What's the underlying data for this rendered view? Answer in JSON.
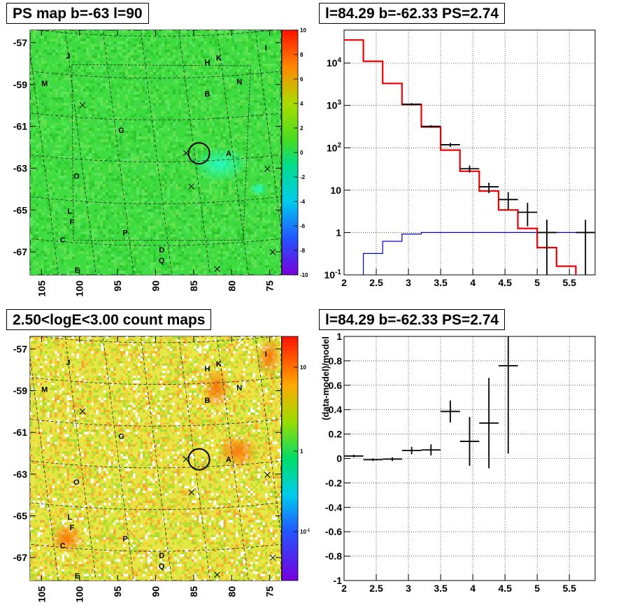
{
  "panels": {
    "top_left_title": "PS map b=-63 l=90",
    "top_right_title": "l=84.29 b=-62.33 PS=2.74",
    "bottom_left_title": "2.50<logE<3.00 count maps",
    "bottom_right_title": "l=84.29 b=-62.33 PS=2.74"
  },
  "colors": {
    "ps_map_background": "#3fdc3f",
    "count_map_background": "#e6e84a",
    "model_line": "#ee0000",
    "background_line": "#0000cc",
    "data": "#000000"
  },
  "chart_data": [
    {
      "type": "heatmap",
      "title": "PS map b=-63 l=90",
      "xlabel": "",
      "ylabel": "",
      "xlim": [
        106.5,
        73.5
      ],
      "ylim": [
        -68.1,
        -56.4
      ],
      "x_ticks": [
        "105",
        "100",
        "95",
        "90",
        "85",
        "80",
        "75"
      ],
      "y_ticks": [
        "-57",
        "-59",
        "-61",
        "-63",
        "-65",
        "-67"
      ],
      "colorbar_ticks": [
        "10",
        "8",
        "6",
        "4",
        "2",
        "0",
        "-2",
        "-4",
        "-6",
        "-8",
        "-10"
      ],
      "colorbar_range": [
        -10,
        10
      ],
      "sources": [
        {
          "label": "J",
          "l": 101.5,
          "b": -57.8
        },
        {
          "label": "M",
          "l": 104.6,
          "b": -59.2
        },
        {
          "label": "H",
          "l": 83.2,
          "b": -58.0
        },
        {
          "label": "K",
          "l": 81.7,
          "b": -57.8
        },
        {
          "label": "I",
          "l": 75.5,
          "b": -57.5
        },
        {
          "label": "B",
          "l": 83.2,
          "b": -59.5
        },
        {
          "label": "N",
          "l": 79.0,
          "b": -59.0
        },
        {
          "label": "G",
          "l": 94.5,
          "b": -61.2
        },
        {
          "label": "A",
          "l": 80.4,
          "b": -62.4
        },
        {
          "label": "O",
          "l": 100.4,
          "b": -63.5
        },
        {
          "label": "L",
          "l": 101.3,
          "b": -65.2
        },
        {
          "label": "F",
          "l": 101.0,
          "b": -65.7
        },
        {
          "label": "C",
          "l": 102.2,
          "b": -66.6
        },
        {
          "label": "P",
          "l": 94.0,
          "b": -66.1
        },
        {
          "label": "D",
          "l": 89.2,
          "b": -66.9
        },
        {
          "label": "Q",
          "l": 89.2,
          "b": -67.4
        },
        {
          "label": "E",
          "l": 100.3,
          "b": -68.0
        }
      ],
      "crosses": [
        {
          "l": 99.6,
          "b": -60.1
        },
        {
          "l": 86.0,
          "b": -62.3
        },
        {
          "l": 75.3,
          "b": -63.3
        },
        {
          "l": 85.3,
          "b": -63.9
        },
        {
          "l": 81.9,
          "b": -67.9
        },
        {
          "l": 74.6,
          "b": -67.3
        }
      ],
      "circle": {
        "l": 84.29,
        "b": -62.33
      }
    },
    {
      "type": "line",
      "title": "l=84.29 b=-62.33 PS=2.74",
      "xlabel": "",
      "ylabel": "",
      "xlim": [
        2.0,
        5.9
      ],
      "ylim": [
        0.1,
        60000
      ],
      "yscale": "log",
      "x_ticks": [
        "2",
        "2.5",
        "3",
        "3.5",
        "4",
        "4.5",
        "5",
        "5.5"
      ],
      "y_ticks": [
        "10^4",
        "10^3",
        "10^2",
        "10",
        "1",
        "10^-1"
      ],
      "grid": true,
      "model_steps": {
        "edges": [
          2.0,
          2.3,
          2.6,
          2.9,
          3.2,
          3.5,
          3.8,
          4.1,
          4.4,
          4.7,
          5.0,
          5.3,
          5.6,
          5.9
        ],
        "values": [
          35000,
          11000,
          3300,
          1050,
          310,
          88,
          28,
          9.5,
          3.4,
          1.25,
          0.44,
          0.16,
          0.09
        ]
      },
      "background_steps": {
        "edges": [
          2.0,
          2.3,
          2.6,
          2.9,
          3.2,
          3.5,
          3.8,
          4.1,
          4.4,
          4.7,
          5.0,
          5.3,
          5.6,
          5.9
        ],
        "values": [
          0.05,
          0.32,
          0.62,
          0.92,
          1.0,
          1.0,
          1.0,
          1.0,
          1.0,
          1.0,
          1.0,
          1.0,
          1.0
        ]
      },
      "data_points": [
        {
          "x": 3.05,
          "y": 1060,
          "xerr": 0.15,
          "ylo": 1000,
          "yhi": 1130
        },
        {
          "x": 3.35,
          "y": 320,
          "xerr": 0.15,
          "ylo": 300,
          "yhi": 340
        },
        {
          "x": 3.65,
          "y": 118,
          "xerr": 0.15,
          "ylo": 105,
          "yhi": 130
        },
        {
          "x": 3.95,
          "y": 32,
          "xerr": 0.15,
          "ylo": 26,
          "yhi": 38
        },
        {
          "x": 4.25,
          "y": 12,
          "xerr": 0.15,
          "ylo": 8.5,
          "yhi": 15
        },
        {
          "x": 4.55,
          "y": 6,
          "xerr": 0.15,
          "ylo": 3.5,
          "yhi": 9
        },
        {
          "x": 4.85,
          "y": 3,
          "xerr": 0.15,
          "ylo": 1.4,
          "yhi": 5
        },
        {
          "x": 5.15,
          "y": 1,
          "xerr": 0.15,
          "ylo": 0.1,
          "yhi": 2
        },
        {
          "x": 5.75,
          "y": 1,
          "xerr": 0.15,
          "ylo": 0.1,
          "yhi": 2
        }
      ]
    },
    {
      "type": "heatmap",
      "title": "2.50<logE<3.00 count maps",
      "xlabel": "",
      "ylabel": "",
      "xlim": [
        106.5,
        73.5
      ],
      "ylim": [
        -68.1,
        -56.4
      ],
      "x_ticks": [
        "105",
        "100",
        "95",
        "90",
        "85",
        "80",
        "75"
      ],
      "y_ticks": [
        "-57",
        "-59",
        "-61",
        "-63",
        "-65",
        "-67"
      ],
      "colorbar_ticks": [
        "10",
        "1",
        "10^-1"
      ]
    },
    {
      "type": "scatter",
      "title": "l=84.29 b=-62.33 PS=2.74",
      "xlabel": "",
      "ylabel": "(data-model)/model",
      "xlim": [
        2.0,
        5.9
      ],
      "ylim": [
        -1.0,
        1.0
      ],
      "x_ticks": [
        "2",
        "2.5",
        "3",
        "3.5",
        "4",
        "4.5",
        "5",
        "5.5"
      ],
      "y_ticks": [
        "1",
        "0.8",
        "0.6",
        "0.4",
        "0.2",
        "0",
        "-0.2",
        "-0.4",
        "-0.6",
        "-0.8",
        "-1"
      ],
      "grid": true,
      "points": [
        {
          "x": 2.15,
          "y": 0.02,
          "xerr": 0.15,
          "yerr": 0.01
        },
        {
          "x": 2.45,
          "y": -0.01,
          "xerr": 0.15,
          "yerr": 0.01
        },
        {
          "x": 2.75,
          "y": -0.005,
          "xerr": 0.15,
          "yerr": 0.015
        },
        {
          "x": 3.05,
          "y": 0.065,
          "xerr": 0.15,
          "yerr": 0.03
        },
        {
          "x": 3.35,
          "y": 0.07,
          "xerr": 0.15,
          "yerr": 0.045
        },
        {
          "x": 3.65,
          "y": 0.385,
          "xerr": 0.15,
          "yerr": 0.09
        },
        {
          "x": 3.95,
          "y": 0.14,
          "xerr": 0.15,
          "yerr": 0.2
        },
        {
          "x": 4.25,
          "y": 0.29,
          "xerr": 0.15,
          "yerr": 0.37
        },
        {
          "x": 4.55,
          "y": 0.76,
          "xerr": 0.15,
          "yerr": 0.72
        }
      ]
    }
  ]
}
